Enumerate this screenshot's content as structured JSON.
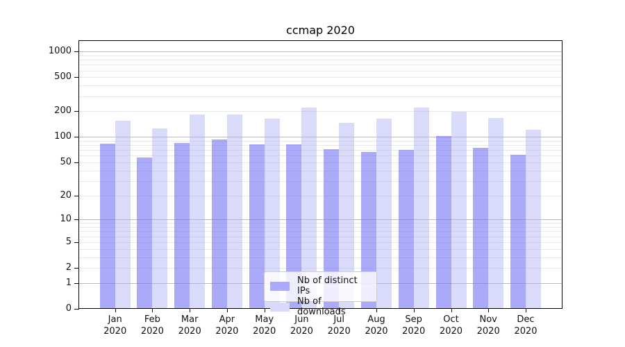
{
  "chart_data": {
    "type": "bar",
    "title": "ccmap 2020",
    "categories": [
      "Jan",
      "Feb",
      "Mar",
      "Apr",
      "May",
      "Jun",
      "Jul",
      "Aug",
      "Sep",
      "Oct",
      "Nov",
      "Dec"
    ],
    "category_year": "2020",
    "series": [
      {
        "name": "Nb of distinct IPs",
        "color": "rgba(118,118,244,0.62)",
        "color_hex": "#aaaaf8",
        "values": [
          83,
          57,
          85,
          93,
          81,
          82,
          71,
          67,
          70,
          103,
          74,
          62
        ]
      },
      {
        "name": "Nb of downloads",
        "color": "rgba(173,173,243,0.45)",
        "color_hex": "#d9d9f9",
        "values": [
          154,
          127,
          182,
          183,
          164,
          222,
          147,
          164,
          222,
          198,
          166,
          121
        ]
      }
    ],
    "y_axis": {
      "scale": "symlog-log1p",
      "ticks": [
        0,
        1,
        2,
        5,
        10,
        20,
        50,
        100,
        200,
        500,
        1000
      ],
      "major_gridlines": [
        1,
        10,
        100,
        1000
      ],
      "ylim": [
        0,
        1350
      ]
    },
    "x_axis": {
      "tick_label_format": "month over year, two lines"
    },
    "legend": {
      "position": "lower center"
    },
    "grid": true,
    "colors": {
      "major_grid": "#b9b9b9",
      "minor_grid": "#e8e8e8",
      "axis": "#000000",
      "text": "#111111",
      "background": "#ffffff"
    }
  }
}
